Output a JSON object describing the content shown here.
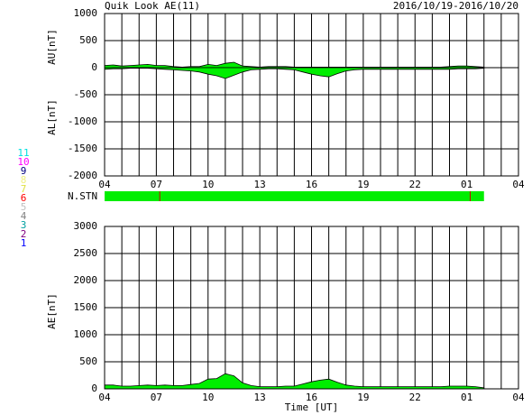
{
  "header": {
    "title": "Quik Look AE(11)",
    "date": "2016/10/19-2016/10/20"
  },
  "stations": {
    "label": "N.STN",
    "end": 26,
    "drops": [
      7.2,
      25.2
    ],
    "color": "#00ee00",
    "drop_color": "#cc0000",
    "legend": [
      {
        "label": "11",
        "color": "#00e0e0"
      },
      {
        "label": "10",
        "color": "#ff00ff"
      },
      {
        "label": "9",
        "color": "#000080"
      },
      {
        "label": "8",
        "color": "#f0f080"
      },
      {
        "label": "7",
        "color": "#e0e040"
      },
      {
        "label": "6",
        "color": "#ff0000"
      },
      {
        "label": "5",
        "color": "#c0c0c0"
      },
      {
        "label": "4",
        "color": "#808080"
      },
      {
        "label": "3",
        "color": "#00a0a0"
      },
      {
        "label": "2",
        "color": "#800080"
      },
      {
        "label": "1",
        "color": "#0000ff"
      }
    ]
  },
  "chart_data": [
    {
      "type": "area",
      "x": [
        4,
        4.5,
        5,
        5.5,
        6,
        6.5,
        7,
        7.5,
        8,
        8.5,
        9,
        9.5,
        10,
        10.5,
        11,
        11.5,
        12,
        12.5,
        13,
        13.5,
        14,
        14.5,
        15,
        15.5,
        16,
        16.5,
        17,
        17.5,
        18,
        18.5,
        19,
        19.5,
        20,
        20.5,
        21,
        21.5,
        22,
        22.5,
        23,
        23.5,
        24,
        24.5,
        25,
        25.5,
        26
      ],
      "series": [
        {
          "name": "AU[nT]",
          "color": "#00ee00",
          "values": [
            40,
            50,
            30,
            40,
            50,
            60,
            40,
            40,
            20,
            10,
            20,
            20,
            60,
            40,
            80,
            100,
            30,
            20,
            10,
            20,
            20,
            20,
            10,
            10,
            10,
            10,
            10,
            10,
            10,
            10,
            10,
            10,
            10,
            10,
            10,
            10,
            10,
            10,
            10,
            10,
            20,
            30,
            30,
            20,
            10
          ]
        },
        {
          "name": "AL[nT]",
          "color": "#00ee00",
          "values": [
            -30,
            -20,
            -20,
            -10,
            -10,
            -10,
            -20,
            -30,
            -40,
            -50,
            -60,
            -80,
            -120,
            -150,
            -200,
            -140,
            -80,
            -40,
            -30,
            -20,
            -20,
            -30,
            -40,
            -80,
            -120,
            -150,
            -170,
            -110,
            -60,
            -40,
            -30,
            -30,
            -30,
            -30,
            -30,
            -30,
            -30,
            -30,
            -30,
            -30,
            -30,
            -20,
            -20,
            -20,
            -10
          ]
        }
      ],
      "xlim": [
        4,
        28
      ],
      "xticks": [
        {
          "value": 4,
          "label": "04"
        },
        {
          "value": 7,
          "label": "07"
        },
        10,
        13,
        16,
        19,
        22,
        {
          "value": 25,
          "label": "01"
        },
        {
          "value": 28,
          "label": "04"
        }
      ],
      "xgrid": [
        4,
        5,
        6,
        7,
        8,
        9,
        10,
        11,
        12,
        13,
        14,
        15,
        16,
        17,
        18,
        19,
        20,
        21,
        22,
        23,
        24,
        25,
        26,
        27,
        28
      ],
      "ylim": [
        -2000,
        1000
      ],
      "yticks": [
        -2000,
        -1500,
        -1000,
        -500,
        0,
        500,
        1000
      ]
    },
    {
      "type": "area",
      "x": [
        4,
        4.5,
        5,
        5.5,
        6,
        6.5,
        7,
        7.5,
        8,
        8.5,
        9,
        9.5,
        10,
        10.5,
        11,
        11.5,
        12,
        12.5,
        13,
        13.5,
        14,
        14.5,
        15,
        15.5,
        16,
        16.5,
        17,
        17.5,
        18,
        18.5,
        19,
        19.5,
        20,
        20.5,
        21,
        21.5,
        22,
        22.5,
        23,
        23.5,
        24,
        24.5,
        25,
        25.5,
        26
      ],
      "series": [
        {
          "name": "AE[nT]",
          "color": "#00ee00",
          "values": [
            70,
            70,
            50,
            50,
            60,
            70,
            60,
            70,
            60,
            60,
            80,
            100,
            180,
            190,
            280,
            240,
            110,
            60,
            40,
            40,
            40,
            50,
            50,
            90,
            130,
            160,
            180,
            120,
            70,
            50,
            40,
            40,
            40,
            40,
            40,
            40,
            40,
            40,
            40,
            40,
            50,
            50,
            50,
            40,
            20
          ]
        }
      ],
      "x_label": "Time [UT]",
      "xlim": [
        4,
        28
      ],
      "xticks": [
        {
          "value": 4,
          "label": "04"
        },
        {
          "value": 7,
          "label": "07"
        },
        10,
        13,
        16,
        19,
        22,
        {
          "value": 25,
          "label": "01"
        },
        {
          "value": 28,
          "label": "04"
        }
      ],
      "xgrid": [
        4,
        5,
        6,
        7,
        8,
        9,
        10,
        11,
        12,
        13,
        14,
        15,
        16,
        17,
        18,
        19,
        20,
        21,
        22,
        23,
        24,
        25,
        26,
        27,
        28
      ],
      "ylim": [
        0,
        3000
      ],
      "yticks": [
        0,
        500,
        1000,
        1500,
        2000,
        2500,
        3000
      ]
    }
  ]
}
